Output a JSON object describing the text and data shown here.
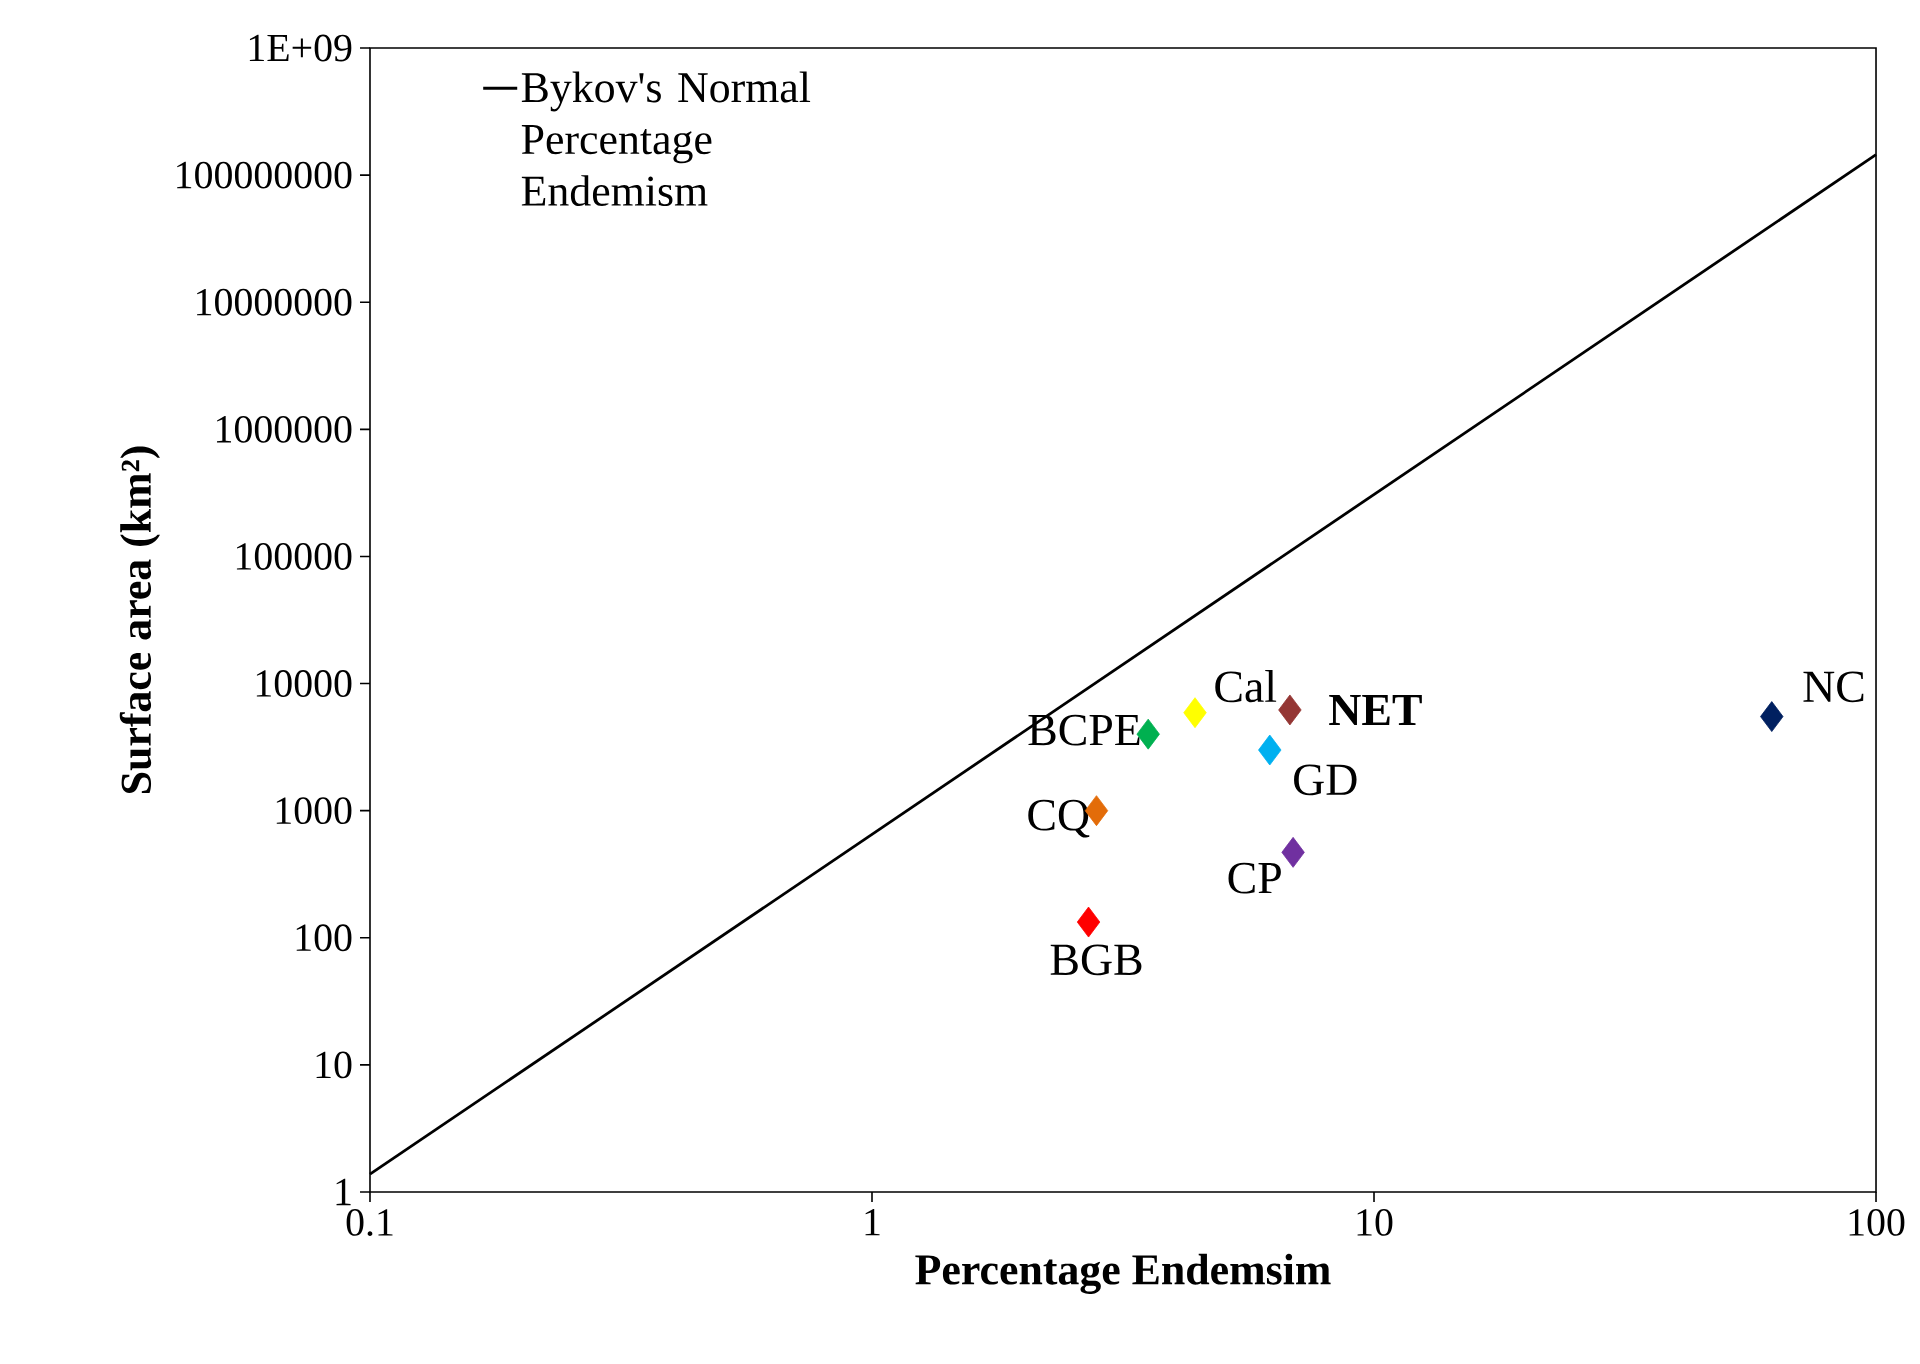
{
  "chart_data": {
    "type": "scatter",
    "xlabel": "Percentage Endemsim",
    "ylabel": "Surface area (km²)",
    "log": "xy",
    "xlim": [
      0.1,
      100
    ],
    "ylim": [
      1,
      1000000000
    ],
    "xticks": [
      0.1,
      1,
      10,
      100
    ],
    "yticks": [
      1,
      10,
      100,
      1000,
      10000,
      100000,
      1000000,
      10000000,
      100000000,
      {
        "value": 1000000000,
        "label": "1E+09"
      }
    ],
    "grid": false,
    "legend": "top left",
    "series": [
      {
        "name": "Bykov's Normal Percentage Endemism",
        "type": "line",
        "color": "#000000",
        "marker": "none",
        "line_style": "solid",
        "x": [
          0.1,
          100
        ],
        "values": [
          1.38,
          145000000
        ]
      },
      {
        "marker": "diamond",
        "x": [
          62,
          6.8,
          4.4,
          3.55,
          6.2,
          2.8,
          6.9,
          2.7
        ],
        "values": [
          5500,
          6200,
          5900,
          4000,
          3000,
          1000,
          470,
          133
        ],
        "colors": [
          "#002060",
          "#943634",
          "#ffff00",
          "#00b050",
          "#00b0f0",
          "#e36c09",
          "#7030a0",
          "#ff0000"
        ]
      }
    ],
    "annotations": [
      {
        "text": "NC",
        "x": 62,
        "y": 5500
      },
      {
        "text": "**NET**",
        "x": 6.8,
        "y": 6200
      },
      {
        "text": "Cal",
        "x": 4.4,
        "y": 5900
      },
      {
        "text": "BCPE",
        "x": 3.55,
        "y": 4000
      },
      {
        "text": "GD",
        "x": 6.2,
        "y": 3000
      },
      {
        "text": "CQ",
        "x": 2.8,
        "y": 1000
      },
      {
        "text": "CP",
        "x": 6.9,
        "y": 470
      },
      {
        "text": "BGB",
        "x": 2.7,
        "y": 133
      }
    ]
  }
}
